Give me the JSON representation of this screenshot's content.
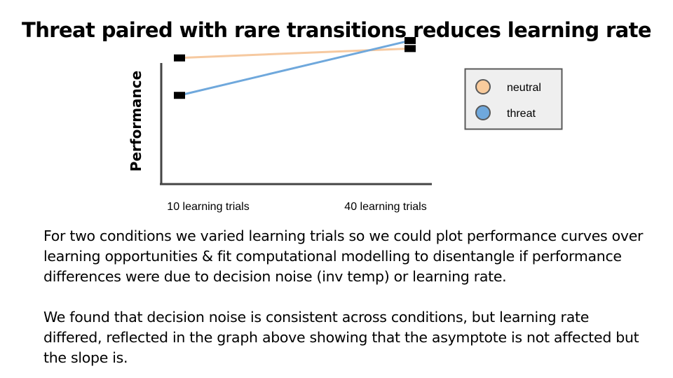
{
  "title": "Threat paired with rare transitions reduces learning rate",
  "paragraphs": [
    "For two conditions we varied learning trials so we could plot performance curves over learning opportunities & fit computational modelling to disentangle if performance differences were due to decision noise (inv temp) or learning rate.",
    "We found that decision noise is consistent across conditions, but learning rate differed, reflected in the graph above showing that the asymptote is not affected but the slope is."
  ],
  "chart_data": {
    "type": "line",
    "categories": [
      "10 learning trials",
      "40 learning trials"
    ],
    "xlabel": "",
    "ylabel": "Performance",
    "ylim": [
      0,
      1
    ],
    "grid": false,
    "legend_position": "right",
    "series": [
      {
        "name": "neutral",
        "color": "#f6c9a0",
        "marker_color": "#f9cb9c",
        "values": [
          0.75,
          0.82
        ]
      },
      {
        "name": "threat",
        "color": "#6fa8dc",
        "marker_color": "#6fa8dc",
        "values": [
          0.47,
          0.88
        ]
      }
    ]
  }
}
